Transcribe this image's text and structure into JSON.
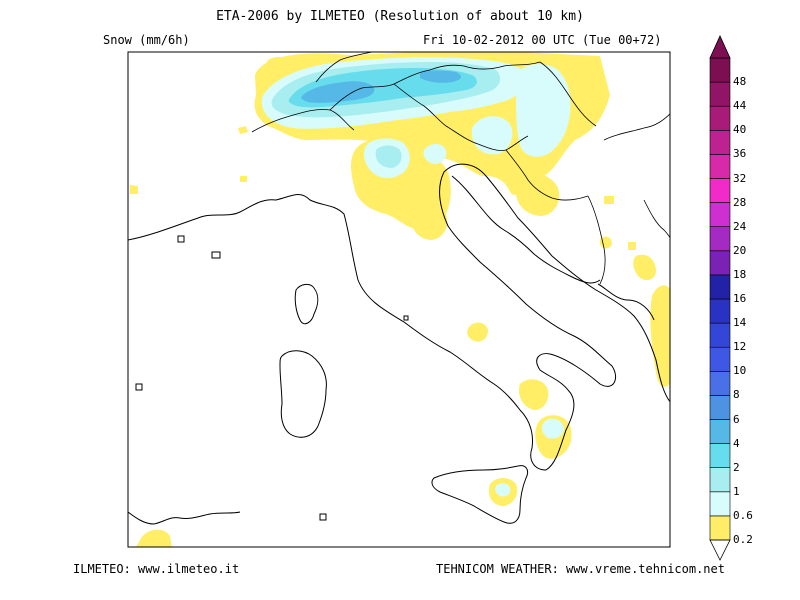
{
  "title": "ETA-2006 by ILMETEO (Resolution of about 10 km)",
  "variable": "Snow (mm/6h)",
  "valid_time": "Fri 10-02-2012 00 UTC (Tue 00+72)",
  "credits": {
    "left": "ILMETEO: www.ilmeteo.it",
    "right": "TEHNICOM WEATHER: www.vreme.tehnicom.net"
  },
  "legend": {
    "levels": [
      {
        "label": "0.2",
        "color": "#ffee66"
      },
      {
        "label": "0.6",
        "color": "#d8fcfc"
      },
      {
        "label": "1",
        "color": "#a8eef0"
      },
      {
        "label": "2",
        "color": "#66dcec"
      },
      {
        "label": "4",
        "color": "#55b8e6"
      },
      {
        "label": "6",
        "color": "#4e92e2"
      },
      {
        "label": "8",
        "color": "#4a70e8"
      },
      {
        "label": "10",
        "color": "#3e58e6"
      },
      {
        "label": "12",
        "color": "#3446d8"
      },
      {
        "label": "14",
        "color": "#2a32c4"
      },
      {
        "label": "16",
        "color": "#2222a6"
      },
      {
        "label": "18",
        "color": "#7a22b4"
      },
      {
        "label": "20",
        "color": "#a42ac4"
      },
      {
        "label": "24",
        "color": "#cc30d0"
      },
      {
        "label": "28",
        "color": "#f22ac8"
      },
      {
        "label": "32",
        "color": "#d82aa8"
      },
      {
        "label": "36",
        "color": "#be2290"
      },
      {
        "label": "40",
        "color": "#a81c78"
      },
      {
        "label": "44",
        "color": "#921466"
      },
      {
        "label": "48",
        "color": "#7c0e52"
      }
    ]
  }
}
